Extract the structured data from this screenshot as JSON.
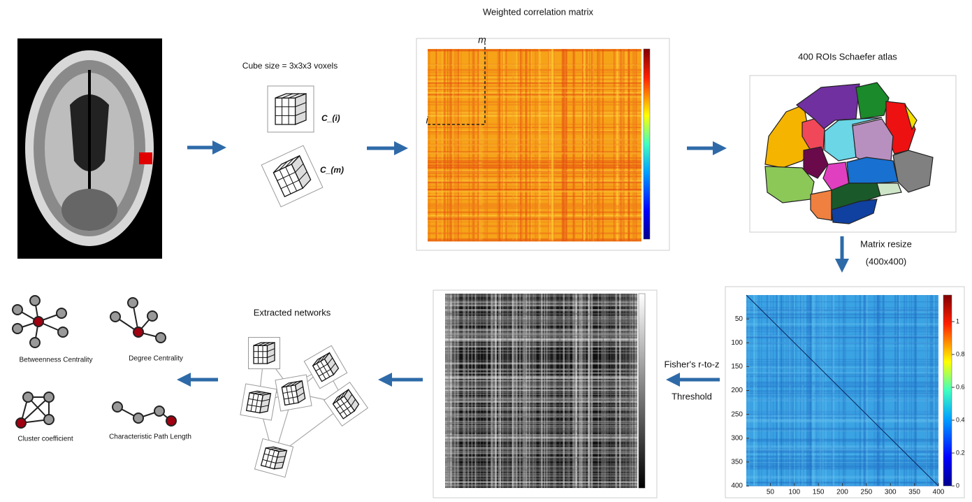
{
  "header": {
    "title": "Weighted correlation matrix"
  },
  "cube": {
    "caption": "Cube size = 3x3x3 voxels",
    "label_i": "C_(i)",
    "label_m": "C_(m)"
  },
  "weighted_matrix": {
    "label_m": "m",
    "label_i": "i"
  },
  "atlas": {
    "title": "400 ROIs Schaefer atlas"
  },
  "resize": {
    "label": "Matrix resize",
    "size": "(400x400)"
  },
  "resized_matrix": {
    "yticks": [
      50,
      100,
      150,
      200,
      250,
      300,
      350,
      400
    ],
    "xticks": [
      50,
      100,
      150,
      200,
      250,
      300,
      350,
      400
    ],
    "colorbar_ticks": [
      0,
      0.2,
      0.4,
      0.6,
      0.8,
      1
    ]
  },
  "threshold": {
    "label1": "Fisher's r-to-z",
    "label2": "Threshold"
  },
  "networks": {
    "title": "Extracted networks"
  },
  "metrics": [
    "Betweenness Centrality",
    "Degree Centrality",
    "Cluster coefficient",
    "Characteristic Path Length"
  ]
}
